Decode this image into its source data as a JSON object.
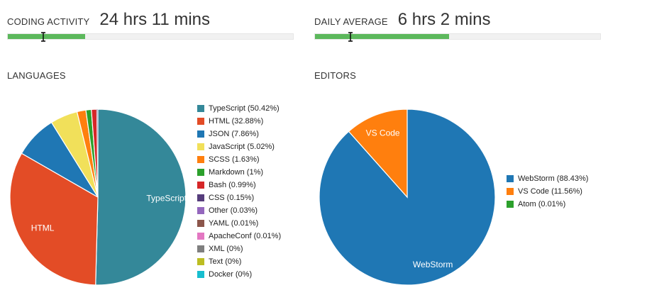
{
  "coding_activity": {
    "label": "CODING ACTIVITY",
    "value": "24 hrs 11 mins",
    "progress_fraction": 0.27,
    "color": "#5cb85c"
  },
  "daily_average": {
    "label": "DAILY AVERAGE",
    "value": "6 hrs 2 mins",
    "progress_fraction": 0.47,
    "color": "#5cb85c"
  },
  "chart_data": [
    {
      "type": "pie",
      "title": "LANGUAGES",
      "legend_placement": "right",
      "slices": [
        {
          "name": "TypeScript",
          "value": 50.42,
          "legend": "TypeScript (50.42%)",
          "color": "#348899",
          "label": "TypeScript"
        },
        {
          "name": "HTML",
          "value": 32.88,
          "legend": "HTML (32.88%)",
          "color": "#e34c26",
          "label": "HTML"
        },
        {
          "name": "JSON",
          "value": 7.86,
          "legend": "JSON (7.86%)",
          "color": "#1f77b4",
          "label": ""
        },
        {
          "name": "JavaScript",
          "value": 5.02,
          "legend": "JavaScript (5.02%)",
          "color": "#f1e05a",
          "label": ""
        },
        {
          "name": "SCSS",
          "value": 1.63,
          "legend": "SCSS (1.63%)",
          "color": "#ff7f0e",
          "label": ""
        },
        {
          "name": "Markdown",
          "value": 1,
          "legend": "Markdown (1%)",
          "color": "#2ca02c",
          "label": ""
        },
        {
          "name": "Bash",
          "value": 0.99,
          "legend": "Bash (0.99%)",
          "color": "#d62728",
          "label": ""
        },
        {
          "name": "CSS",
          "value": 0.15,
          "legend": "CSS (0.15%)",
          "color": "#563d7c",
          "label": ""
        },
        {
          "name": "Other",
          "value": 0.03,
          "legend": "Other (0.03%)",
          "color": "#9467bd",
          "label": ""
        },
        {
          "name": "YAML",
          "value": 0.01,
          "legend": "YAML (0.01%)",
          "color": "#8c564b",
          "label": ""
        },
        {
          "name": "ApacheConf",
          "value": 0.01,
          "legend": "ApacheConf (0.01%)",
          "color": "#e377c2",
          "label": ""
        },
        {
          "name": "XML",
          "value": 0,
          "legend": "XML (0%)",
          "color": "#7f7f7f",
          "label": ""
        },
        {
          "name": "Text",
          "value": 0,
          "legend": "Text (0%)",
          "color": "#bcbd22",
          "label": ""
        },
        {
          "name": "Docker",
          "value": 0,
          "legend": "Docker (0%)",
          "color": "#17becf",
          "label": ""
        }
      ]
    },
    {
      "type": "pie",
      "title": "EDITORS",
      "legend_placement": "right",
      "slices": [
        {
          "name": "WebStorm",
          "value": 88.43,
          "legend": "WebStorm (88.43%)",
          "color": "#1f77b4",
          "label": "WebStorm"
        },
        {
          "name": "VS Code",
          "value": 11.56,
          "legend": "VS Code (11.56%)",
          "color": "#ff7f0e",
          "label": "VS Code"
        },
        {
          "name": "Atom",
          "value": 0.01,
          "legend": "Atom (0.01%)",
          "color": "#2ca02c",
          "label": ""
        }
      ]
    }
  ]
}
